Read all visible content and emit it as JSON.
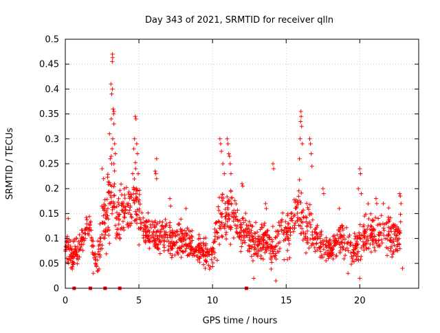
{
  "chart_data": {
    "type": "scatter",
    "title": "Day 343 of 2021, SRMTID for receiver qlln",
    "xlabel": "GPS time / hours",
    "ylabel": "SRMTID / TECUs",
    "xlim": [
      0,
      24
    ],
    "ylim": [
      0,
      0.5
    ],
    "x_ticks": [
      0,
      5,
      10,
      15,
      20
    ],
    "x_tick_labels": [
      "0",
      "5",
      "10",
      "15",
      "20"
    ],
    "y_ticks": [
      0,
      0.05,
      0.1,
      0.15,
      0.2,
      0.25,
      0.3,
      0.35,
      0.4,
      0.45,
      0.5
    ],
    "y_tick_labels": [
      "0",
      "0.05",
      "0.1",
      "0.15",
      "0.2",
      "0.25",
      "0.3",
      "0.35",
      "0.4",
      "0.45",
      "0.5"
    ],
    "grid": true,
    "marker": "plus",
    "series_color": "#ff0000",
    "zero_markers_x": [
      0.6,
      1.7,
      2.7,
      3.7,
      12.3
    ],
    "envelope": {
      "x": [
        0.0,
        0.3,
        0.5,
        0.8,
        1.0,
        1.3,
        1.6,
        1.9,
        2.1,
        2.3,
        2.6,
        2.9,
        3.1,
        3.3,
        3.5,
        3.8,
        4.1,
        4.4,
        4.8,
        5.0,
        5.3,
        5.7,
        6.0,
        6.3,
        6.7,
        7.0,
        7.5,
        8.0,
        8.5,
        9.0,
        9.5,
        9.8,
        10.0,
        10.3,
        10.6,
        10.9,
        11.2,
        11.5,
        11.8,
        12.1,
        12.5,
        13.0,
        13.5,
        14.0,
        14.5,
        15.0,
        15.3,
        15.6,
        15.9,
        16.2,
        16.5,
        16.8,
        17.1,
        17.5,
        18.0,
        18.5,
        19.0,
        19.5,
        19.8,
        20.1,
        20.4,
        20.8,
        21.2,
        21.6,
        22.0,
        22.4,
        22.8
      ],
      "mean": [
        0.09,
        0.075,
        0.06,
        0.08,
        0.09,
        0.1,
        0.13,
        0.07,
        0.04,
        0.08,
        0.13,
        0.16,
        0.19,
        0.17,
        0.14,
        0.15,
        0.16,
        0.16,
        0.19,
        0.15,
        0.12,
        0.11,
        0.1,
        0.1,
        0.11,
        0.1,
        0.09,
        0.1,
        0.09,
        0.08,
        0.07,
        0.07,
        0.075,
        0.12,
        0.15,
        0.13,
        0.15,
        0.13,
        0.11,
        0.12,
        0.1,
        0.09,
        0.1,
        0.08,
        0.1,
        0.11,
        0.12,
        0.14,
        0.16,
        0.13,
        0.12,
        0.11,
        0.1,
        0.09,
        0.08,
        0.1,
        0.1,
        0.07,
        0.08,
        0.1,
        0.12,
        0.11,
        0.11,
        0.12,
        0.11,
        0.1,
        0.11
      ],
      "spread": [
        0.03,
        0.03,
        0.025,
        0.03,
        0.03,
        0.03,
        0.03,
        0.025,
        0.02,
        0.035,
        0.05,
        0.07,
        0.08,
        0.07,
        0.05,
        0.05,
        0.05,
        0.05,
        0.07,
        0.05,
        0.035,
        0.03,
        0.03,
        0.03,
        0.03,
        0.03,
        0.03,
        0.03,
        0.03,
        0.025,
        0.025,
        0.025,
        0.025,
        0.05,
        0.06,
        0.05,
        0.06,
        0.05,
        0.035,
        0.04,
        0.035,
        0.03,
        0.035,
        0.03,
        0.04,
        0.04,
        0.04,
        0.05,
        0.07,
        0.05,
        0.045,
        0.035,
        0.03,
        0.03,
        0.025,
        0.035,
        0.035,
        0.025,
        0.03,
        0.04,
        0.045,
        0.035,
        0.035,
        0.04,
        0.04,
        0.035,
        0.04
      ]
    },
    "points": [
      [
        3.2,
        0.47
      ],
      [
        3.21,
        0.463
      ],
      [
        3.19,
        0.455
      ],
      [
        3.1,
        0.41
      ],
      [
        3.2,
        0.4
      ],
      [
        3.15,
        0.39
      ],
      [
        3.25,
        0.36
      ],
      [
        3.3,
        0.355
      ],
      [
        3.28,
        0.35
      ],
      [
        3.12,
        0.34
      ],
      [
        3.3,
        0.33
      ],
      [
        3.0,
        0.31
      ],
      [
        3.22,
        0.3
      ],
      [
        3.35,
        0.29
      ],
      [
        3.18,
        0.28
      ],
      [
        3.4,
        0.27
      ],
      [
        3.05,
        0.26
      ],
      [
        3.3,
        0.25
      ],
      [
        3.15,
        0.25
      ],
      [
        2.5,
        0.24
      ],
      [
        2.6,
        0.22
      ],
      [
        4.75,
        0.345
      ],
      [
        4.8,
        0.34
      ],
      [
        4.7,
        0.3
      ],
      [
        4.85,
        0.29
      ],
      [
        4.65,
        0.28
      ],
      [
        4.9,
        0.27
      ],
      [
        4.78,
        0.24
      ],
      [
        4.95,
        0.23
      ],
      [
        6.2,
        0.26
      ],
      [
        6.1,
        0.235
      ],
      [
        6.15,
        0.23
      ],
      [
        6.2,
        0.22
      ],
      [
        11.0,
        0.3
      ],
      [
        11.05,
        0.29
      ],
      [
        10.5,
        0.3
      ],
      [
        10.55,
        0.29
      ],
      [
        10.6,
        0.275
      ],
      [
        11.1,
        0.27
      ],
      [
        11.15,
        0.265
      ],
      [
        10.7,
        0.25
      ],
      [
        11.2,
        0.25
      ],
      [
        10.8,
        0.23
      ],
      [
        11.25,
        0.23
      ],
      [
        12.0,
        0.21
      ],
      [
        12.05,
        0.205
      ],
      [
        14.1,
        0.25
      ],
      [
        14.15,
        0.24
      ],
      [
        16.0,
        0.355
      ],
      [
        16.02,
        0.345
      ],
      [
        15.98,
        0.335
      ],
      [
        16.05,
        0.325
      ],
      [
        15.95,
        0.3
      ],
      [
        16.1,
        0.29
      ],
      [
        16.6,
        0.3
      ],
      [
        16.65,
        0.29
      ],
      [
        16.7,
        0.27
      ],
      [
        15.9,
        0.26
      ],
      [
        16.75,
        0.245
      ],
      [
        20.0,
        0.24
      ],
      [
        20.05,
        0.23
      ],
      [
        19.9,
        0.2
      ],
      [
        20.1,
        0.19
      ],
      [
        22.7,
        0.19
      ],
      [
        22.75,
        0.185
      ],
      [
        22.8,
        0.17
      ],
      [
        21.1,
        0.18
      ],
      [
        21.15,
        0.17
      ],
      [
        21.6,
        0.17
      ],
      [
        7.1,
        0.18
      ],
      [
        7.15,
        0.165
      ],
      [
        8.2,
        0.16
      ],
      [
        0.2,
        0.14
      ],
      [
        13.6,
        0.17
      ],
      [
        13.65,
        0.16
      ],
      [
        17.5,
        0.2
      ],
      [
        17.55,
        0.19
      ],
      [
        18.6,
        0.16
      ],
      [
        19.2,
        0.03
      ],
      [
        20.0,
        0.02
      ],
      [
        14.3,
        0.015
      ],
      [
        12.8,
        0.02
      ],
      [
        9.5,
        0.04
      ],
      [
        22.9,
        0.04
      ],
      [
        0.1,
        0.06
      ],
      [
        1.9,
        0.03
      ]
    ]
  }
}
